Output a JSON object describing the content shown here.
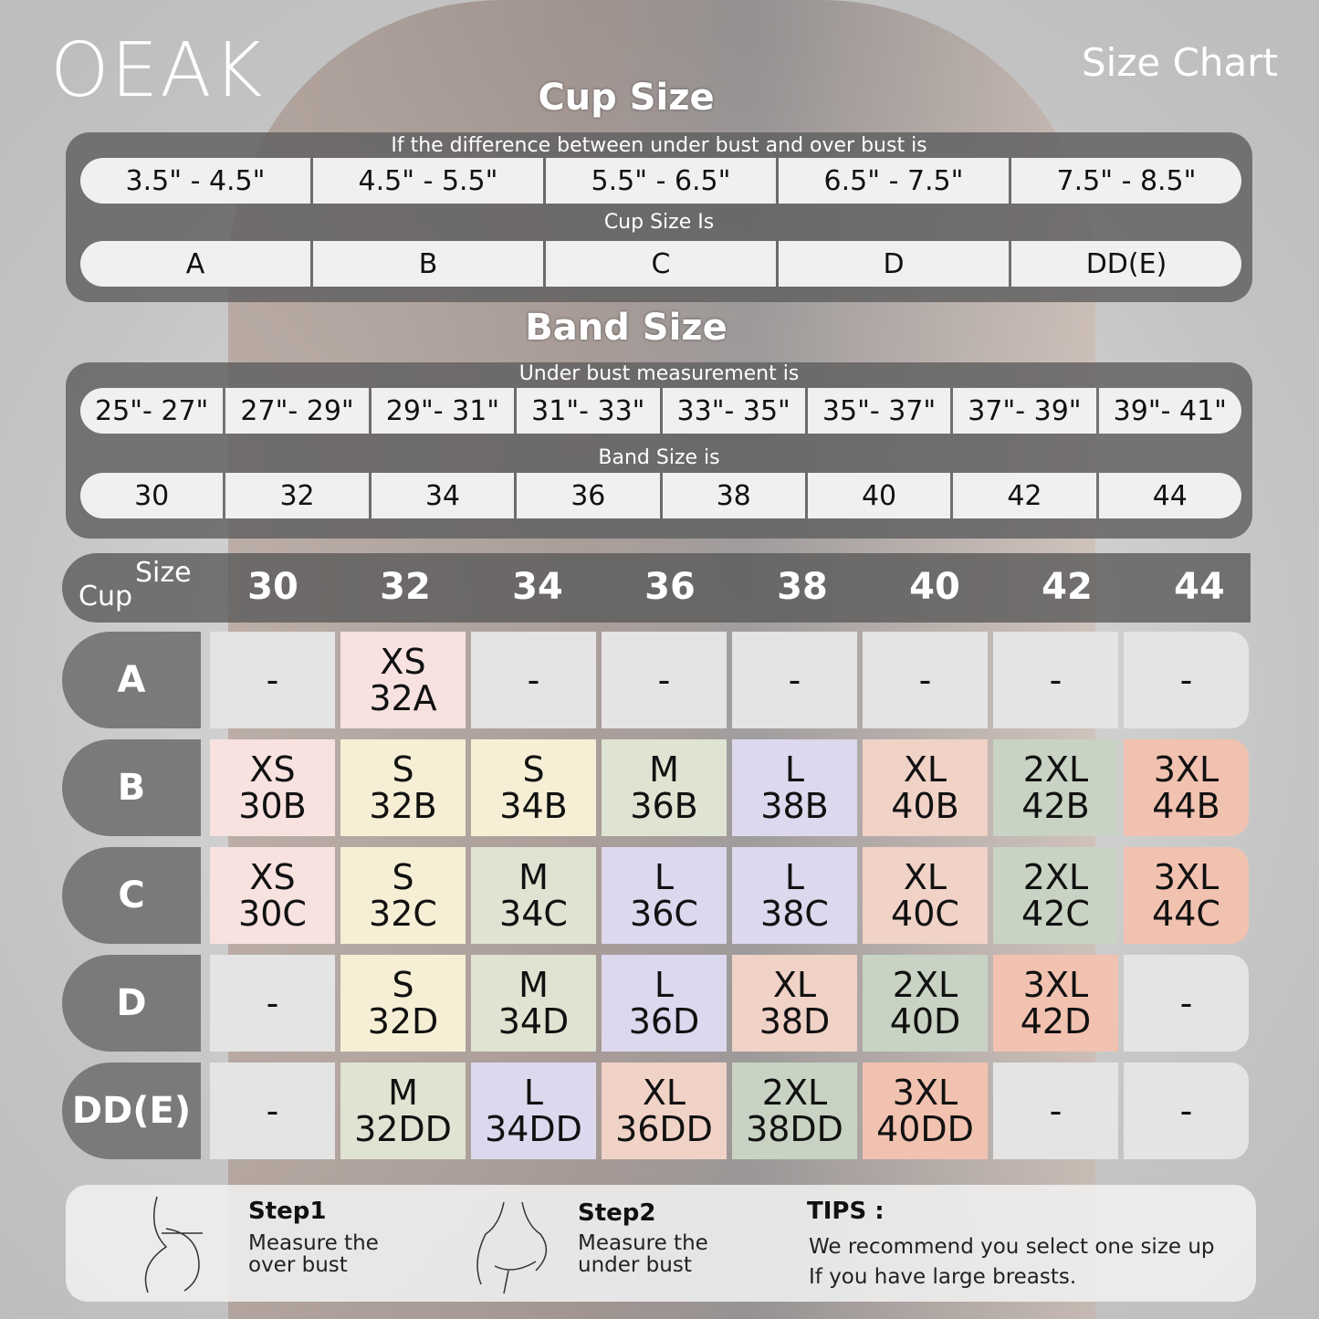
{
  "brand": "OEAK",
  "title": "Size Chart",
  "cup_section": {
    "heading": "Cup Size",
    "caption1": "If the  difference between under bust and over bust is",
    "ranges": [
      "3.5\" -  4.5\"",
      "4.5\" -  5.5\"",
      "5.5\" -  6.5\"",
      "6.5\" -  7.5\"",
      "7.5\" -  8.5\""
    ],
    "caption2": "Cup Size Is",
    "cups": [
      "A",
      "B",
      "C",
      "D",
      "DD(E)"
    ]
  },
  "band_section": {
    "heading": "Band Size",
    "caption1": "Under bust measurement is",
    "ranges": [
      "25\"- 27\"",
      "27\"- 29\"",
      "29\"- 31\"",
      "31\"- 33\"",
      "33\"- 35\"",
      "35\"- 37\"",
      "37\"- 39\"",
      "39\"- 41\""
    ],
    "caption2": "Band Size is",
    "bands": [
      "30",
      "32",
      "34",
      "36",
      "38",
      "40",
      "42",
      "44"
    ]
  },
  "table": {
    "corner_size": "Size",
    "corner_cup": "Cup",
    "columns": [
      "30",
      "32",
      "34",
      "36",
      "38",
      "40",
      "42",
      "44"
    ],
    "rows": [
      {
        "cup": "A",
        "cells": [
          "-",
          "XS|32A",
          "-",
          "-",
          "-",
          "-",
          "-",
          "-"
        ]
      },
      {
        "cup": "B",
        "cells": [
          "XS|30B",
          "S|32B",
          "S|34B",
          "M|36B",
          "L|38B",
          "XL|40B",
          "2XL|42B",
          "3XL|44B"
        ]
      },
      {
        "cup": "C",
        "cells": [
          "XS|30C",
          "S|32C",
          "M|34C",
          "L|36C",
          "L|38C",
          "XL|40C",
          "2XL|42C",
          "3XL|44C"
        ]
      },
      {
        "cup": "D",
        "cells": [
          "-",
          "S|32D",
          "M|34D",
          "L|36D",
          "XL|38D",
          "2XL|40D",
          "3XL|42D",
          "-"
        ]
      },
      {
        "cup": "DD(E)",
        "cells": [
          "-",
          "M|32DD",
          "L|34DD",
          "XL|36DD",
          "2XL|38DD",
          "3XL|40DD",
          "-",
          "-"
        ]
      }
    ]
  },
  "size_colors": {
    "-": "#e4e4e4",
    "XS": "#f7e2e0",
    "S": "#f6efd5",
    "M": "#dfe3d1",
    "L": "#dcd8ee",
    "XL": "#f1d2c7",
    "2XL": "#c8d3c3",
    "3XL": "#f2c2b0"
  },
  "tips": {
    "step1_title": "Step1",
    "step1_text": "Measure the\nover bust",
    "step2_title": "Step2",
    "step2_text": "Measure the\nunder bust",
    "tips_title": "TIPS :",
    "tips_text": "We recommend you select one size up\nIf you have large breasts."
  }
}
